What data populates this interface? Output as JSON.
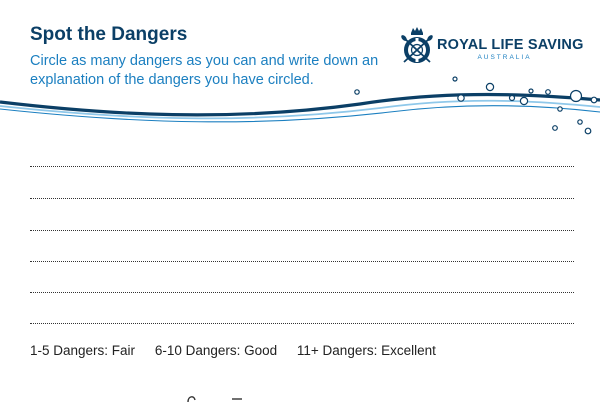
{
  "worksheet": {
    "title": "Spot the Dangers",
    "instructions": "Circle as many dangers as you can and write down an explanation of the dangers you have circled.",
    "answer_line_count": 6
  },
  "logo": {
    "name": "ROYAL LIFE SAVING",
    "subtitle": "AUSTRALIA",
    "icon": "royal-life-saving-crest-icon"
  },
  "ratings": [
    "1-5 Dangers: Fair",
    "6-10 Dangers: Good",
    "11+ Dangers: Excellent"
  ],
  "colors": {
    "navy": "#0b3f66",
    "blue": "#1b7fc0",
    "light_blue": "#8fc8ea"
  }
}
